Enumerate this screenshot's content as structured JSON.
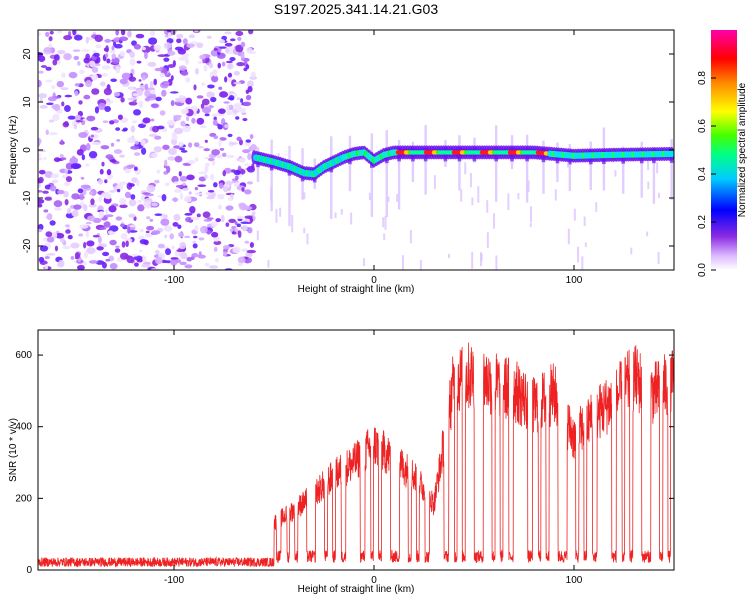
{
  "title": "S197.2025.341.14.21.G03",
  "chart_data": [
    {
      "type": "heatmap",
      "xlabel": "Height of straight line (km)",
      "ylabel": "Frequency (Hz)",
      "xlim": [
        -168,
        150
      ],
      "ylim": [
        -25,
        25
      ],
      "xticks": [
        -100,
        0,
        100
      ],
      "yticks": [
        -20,
        -10,
        0,
        10,
        20
      ],
      "noise_region_end_km": -60,
      "track": {
        "x": [
          -60,
          -50,
          -42,
          -35,
          -30,
          -25,
          -20,
          -15,
          -10,
          -5,
          0,
          5,
          10,
          20,
          40,
          60,
          80,
          100,
          120,
          150
        ],
        "y": [
          -1.5,
          -2.5,
          -3.5,
          -4.8,
          -5.0,
          -3.5,
          -2.5,
          -1.5,
          -0.8,
          -0.5,
          -2.2,
          -1.0,
          -0.5,
          -0.5,
          -0.5,
          -0.5,
          -0.5,
          -1.2,
          -1.0,
          -0.8
        ]
      },
      "colorbar": {
        "label": "Normalized spectral amplitude",
        "min": 0,
        "max": 1,
        "ticks": [
          "0.0",
          "0.2",
          "0.4",
          "0.6",
          "0.8"
        ],
        "colors": [
          "#ffffff",
          "#cc88ff",
          "#6600ff",
          "#0000ff",
          "#00ffff",
          "#00ff00",
          "#ffff00",
          "#ff8800",
          "#ff0000",
          "#ff00ff"
        ]
      }
    },
    {
      "type": "line",
      "xlabel": "Height of straight line (km)",
      "ylabel": "SNR (10 * v/v)",
      "xlim": [
        -168,
        150
      ],
      "ylim": [
        0,
        670
      ],
      "xticks": [
        -100,
        0,
        100
      ],
      "yticks": [
        0,
        200,
        400,
        600
      ],
      "series": [
        {
          "name": "SNR",
          "color": "#ee2222",
          "noise_level_before_km": -50,
          "baseline": 22,
          "envelope": {
            "x": [
              -50,
              -40,
              -30,
              -20,
              -10,
              0,
              10,
              20,
              30,
              40,
              50,
              60,
              70,
              80,
              90,
              100,
              110,
              120,
              130,
              140,
              150
            ],
            "y": [
              150,
              190,
              240,
              300,
              340,
              400,
              350,
              300,
              210,
              600,
              620,
              590,
              570,
              520,
              560,
              420,
              490,
              540,
              610,
              560,
              600
            ]
          }
        }
      ]
    }
  ]
}
